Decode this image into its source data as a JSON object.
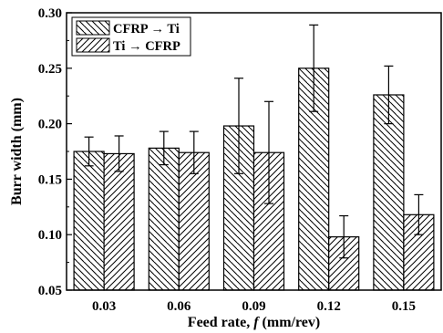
{
  "chart_data": {
    "type": "bar",
    "categories": [
      "0.03",
      "0.06",
      "0.09",
      "0.12",
      "0.15"
    ],
    "series": [
      {
        "name": "CFRP → Ti",
        "values": [
          0.175,
          0.178,
          0.198,
          0.25,
          0.226
        ],
        "errors": [
          0.013,
          0.015,
          0.043,
          0.039,
          0.026
        ],
        "hatch": "backslash"
      },
      {
        "name": "Ti → CFRP",
        "values": [
          0.173,
          0.174,
          0.174,
          0.098,
          0.118
        ],
        "errors": [
          0.016,
          0.019,
          0.046,
          0.019,
          0.018
        ],
        "hatch": "slash"
      }
    ],
    "xlabel_prefix": "Feed rate, ",
    "xlabel_symbol": "f",
    "xlabel_suffix": " (mm/rev)",
    "ylabel": "Burr width (mm)",
    "ylim": [
      0.05,
      0.3
    ],
    "yticks": [
      "0.05",
      "0.10",
      "0.15",
      "0.20",
      "0.25",
      "0.30"
    ],
    "grid": false,
    "legend_position": "top-left"
  }
}
